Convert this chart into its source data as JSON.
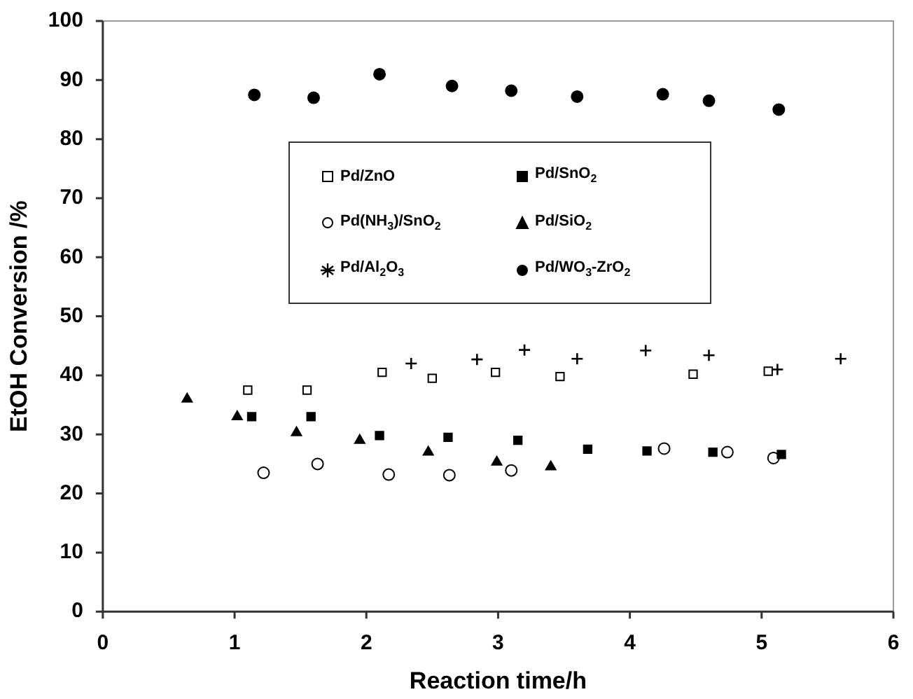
{
  "chart_data": {
    "type": "scatter",
    "xlabel": "Reaction time/h",
    "ylabel": "EtOH Conversion /%",
    "xlim": [
      0,
      6
    ],
    "xticks": [
      0,
      1,
      2,
      3,
      4,
      5,
      6
    ],
    "ylim": [
      0,
      100
    ],
    "yticks": [
      0,
      10,
      20,
      30,
      40,
      50,
      60,
      70,
      80,
      90,
      100
    ],
    "grid": false,
    "legend": "top",
    "series": [
      {
        "name": "Pd/ZnO",
        "color": "#ffffff",
        "marker": "square",
        "x": [
          1.1,
          1.55,
          2.12,
          2.5,
          2.98,
          3.47,
          4.48,
          5.05
        ],
        "values": [
          37.5,
          37.5,
          40.5,
          39.5,
          40.5,
          39.8,
          40.2,
          40.7
        ]
      },
      {
        "name": "Pd/SnO$_{2}$",
        "color": "#000000",
        "marker": "square",
        "x": [
          1.13,
          1.58,
          2.1,
          2.62,
          3.15,
          3.68,
          4.13,
          4.63,
          5.15
        ],
        "values": [
          33,
          33,
          29.8,
          29.5,
          29,
          27.5,
          27.2,
          27,
          26.6
        ]
      },
      {
        "name": "Pd(NH$_{3}$)/SnO$_{2}$",
        "color": "#ffffff",
        "marker": "circle",
        "x": [
          1.22,
          1.63,
          2.17,
          2.63,
          3.1,
          4.26,
          4.74,
          5.09
        ],
        "values": [
          23.5,
          25,
          23.2,
          23.1,
          23.9,
          27.6,
          27,
          26
        ]
      },
      {
        "name": "Pd/SiO$_{2}$",
        "color": "#000000",
        "marker": "triangle",
        "x": [
          0.64,
          1.02,
          1.47,
          1.95,
          2.47,
          2.99,
          3.4
        ],
        "values": [
          36,
          33,
          30.3,
          29,
          27,
          25.3,
          24.5
        ]
      },
      {
        "name": "Pd/Al$_{2}$O$_{3}$",
        "color": "#000000",
        "marker": "cross",
        "x": [
          2.34,
          2.84,
          3.2,
          3.6,
          4.12,
          4.6,
          5.12,
          5.6
        ],
        "values": [
          42,
          42.7,
          44.3,
          42.8,
          44.2,
          43.4,
          41,
          42.8
        ]
      },
      {
        "name": "Pd/WO$_{3}$-ZrO$_{2}$",
        "color": "#000000",
        "marker": "circle",
        "x": [
          1.15,
          1.6,
          2.1,
          2.65,
          3.1,
          3.6,
          4.25,
          4.6,
          5.13
        ],
        "values": [
          87.5,
          87,
          91,
          89,
          88.2,
          87.2,
          87.6,
          86.5,
          85
        ]
      }
    ]
  }
}
